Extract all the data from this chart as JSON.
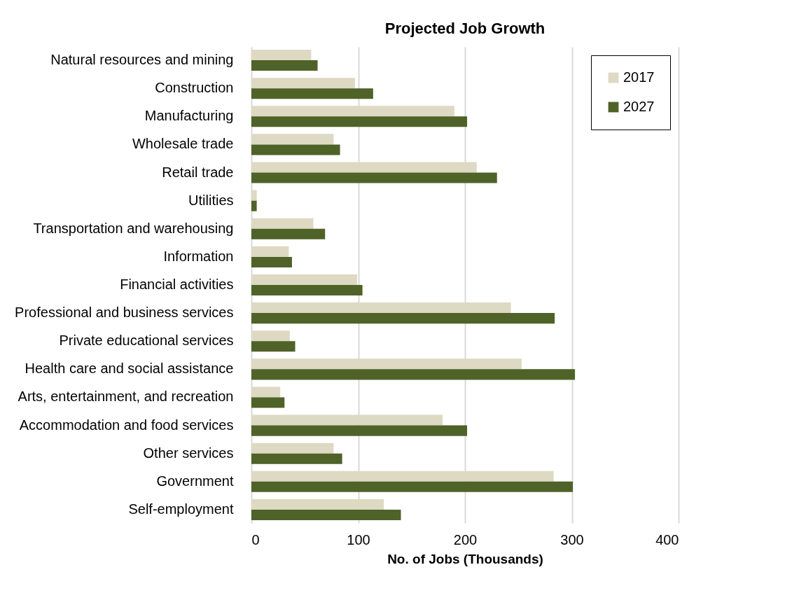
{
  "chart_data": {
    "type": "bar",
    "orientation": "horizontal",
    "title": "Projected Job Growth",
    "xlabel": "No. of Jobs (Thousands)",
    "categories": [
      "Natural resources and mining",
      "Construction",
      "Manufacturing",
      "Wholesale trade",
      "Retail trade",
      "Utilities",
      "Transportation and warehousing",
      "Information",
      "Financial activities",
      "Professional and business services",
      "Private educational services",
      "Health care and social assistance",
      "Arts, entertainment, and recreation",
      "Accommodation and food services",
      "Other services",
      "Government",
      "Self-employment"
    ],
    "series": [
      {
        "name": "2017",
        "color": "#ddd9c3",
        "values": [
          56,
          97,
          190,
          77,
          211,
          5,
          58,
          35,
          99,
          243,
          36,
          253,
          27,
          179,
          77,
          283,
          124
        ]
      },
      {
        "name": "2027",
        "color": "#4f6228",
        "values": [
          62,
          114,
          202,
          83,
          230,
          5,
          69,
          38,
          104,
          284,
          41,
          303,
          31,
          202,
          85,
          301,
          140
        ]
      }
    ],
    "xlim": [
      0,
      400
    ],
    "xticks": [
      0,
      100,
      200,
      300,
      400
    ],
    "grid": "x",
    "legend": "top right"
  }
}
